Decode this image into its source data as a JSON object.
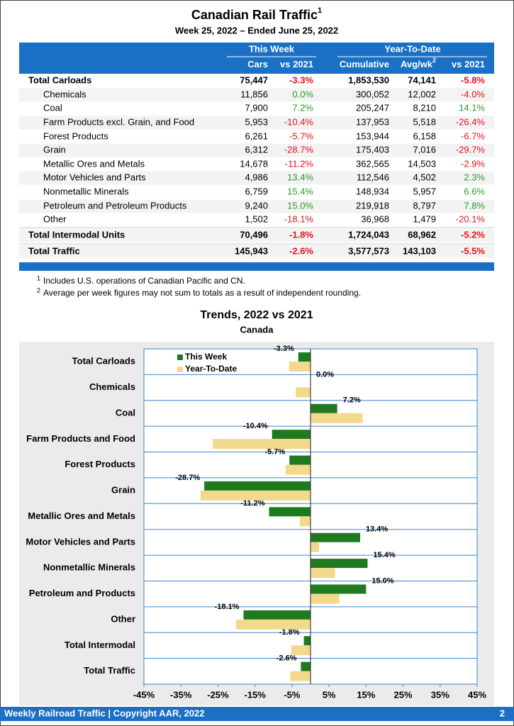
{
  "header": {
    "title": "Canadian Rail Traffic",
    "title_note": "1",
    "subtitle": "Week 25, 2022 – Ended June 25, 2022"
  },
  "table": {
    "groups": [
      "This Week",
      "Year-To-Date"
    ],
    "columns": [
      "Cars",
      "vs 2021",
      "Cumulative",
      "Avg/wk",
      "vs 2021"
    ],
    "avg_note": "2",
    "rows": [
      [
        "Total Carloads",
        "75,447",
        "-3.3%",
        "1,853,530",
        "74,141",
        "-5.8%"
      ],
      [
        "Chemicals",
        "11,856",
        "0.0%",
        "300,052",
        "12,002",
        "-4.0%"
      ],
      [
        "Coal",
        "7,900",
        "7.2%",
        "205,247",
        "8,210",
        "14.1%"
      ],
      [
        "Farm Products excl. Grain, and Food",
        "5,953",
        "-10.4%",
        "137,953",
        "5,518",
        "-26.4%"
      ],
      [
        "Forest Products",
        "6,261",
        "-5.7%",
        "153,944",
        "6,158",
        "-6.7%"
      ],
      [
        "Grain",
        "6,312",
        "-28.7%",
        "175,403",
        "7,016",
        "-29.7%"
      ],
      [
        "Metallic Ores and Metals",
        "14,678",
        "-11.2%",
        "362,565",
        "14,503",
        "-2.9%"
      ],
      [
        "Motor Vehicles and Parts",
        "4,986",
        "13.4%",
        "112,546",
        "4,502",
        "2.3%"
      ],
      [
        "Nonmetallic Minerals",
        "6,759",
        "15.4%",
        "148,934",
        "5,957",
        "6.6%"
      ],
      [
        "Petroleum and Petroleum Products",
        "9,240",
        "15.0%",
        "219,918",
        "8,797",
        "7.8%"
      ],
      [
        "Other",
        "1,502",
        "-18.1%",
        "36,968",
        "1,479",
        "-20.1%"
      ],
      [
        "Total Intermodal Units",
        "70,496",
        "-1.8%",
        "1,724,043",
        "68,962",
        "-5.2%"
      ],
      [
        "Total Traffic",
        "145,943",
        "-2.6%",
        "3,577,573",
        "143,103",
        "-5.5%"
      ]
    ]
  },
  "footnotes": [
    {
      "mark": "1",
      "text": "Includes U.S. operations of Canadian Pacific and CN."
    },
    {
      "mark": "2",
      "text": "Average per week figures may not sum to totals as a result of independent rounding."
    }
  ],
  "chart_data": {
    "type": "bar",
    "title": "Trends, 2022 vs 2021",
    "subtitle": "Canada",
    "categories": [
      "Total Carloads",
      "Chemicals",
      "Coal",
      "Farm Products and Food",
      "Forest Products",
      "Grain",
      "Metallic Ores and Metals",
      "Motor Vehicles and Parts",
      "Nonmetallic Minerals",
      "Petroleum and Products",
      "Other",
      "Total Intermodal",
      "Total Traffic"
    ],
    "series": [
      {
        "name": "This Week",
        "color": "#1f7a1f",
        "values": [
          -3.3,
          0.0,
          7.2,
          -10.4,
          -5.7,
          -28.7,
          -11.2,
          13.4,
          15.4,
          15.0,
          -18.1,
          -1.8,
          -2.6
        ],
        "value_labels": [
          "-3.3%",
          "0.0%",
          "7.2%",
          "-10.4%",
          "-5.7%",
          "-28.7%",
          "-11.2%",
          "13.4%",
          "15.4%",
          "15.0%",
          "-18.1%",
          "-1.8%",
          "-2.6%"
        ]
      },
      {
        "name": "Year-To-Date",
        "color": "#f3d98b",
        "values": [
          -5.8,
          -4.0,
          14.1,
          -26.4,
          -6.7,
          -29.7,
          -2.9,
          2.3,
          6.6,
          7.8,
          -20.1,
          -5.2,
          -5.5
        ]
      }
    ],
    "xlim": [
      -45,
      45
    ],
    "xticks": [
      {
        "value": -45,
        "label": "-45%"
      },
      {
        "value": -35,
        "label": "-35%"
      },
      {
        "value": -25,
        "label": "-25%"
      },
      {
        "value": -15,
        "label": "-15%"
      },
      {
        "value": -5,
        "label": "-5%"
      },
      {
        "value": 5,
        "label": "5%"
      },
      {
        "value": 15,
        "label": "15%"
      },
      {
        "value": 25,
        "label": "25%"
      },
      {
        "value": 35,
        "label": "35%"
      },
      {
        "value": 45,
        "label": "45%"
      }
    ],
    "legend": "upper left"
  },
  "footer": {
    "left": "Weekly Railroad Traffic | Copyright AAR, 2022",
    "page": "2"
  }
}
